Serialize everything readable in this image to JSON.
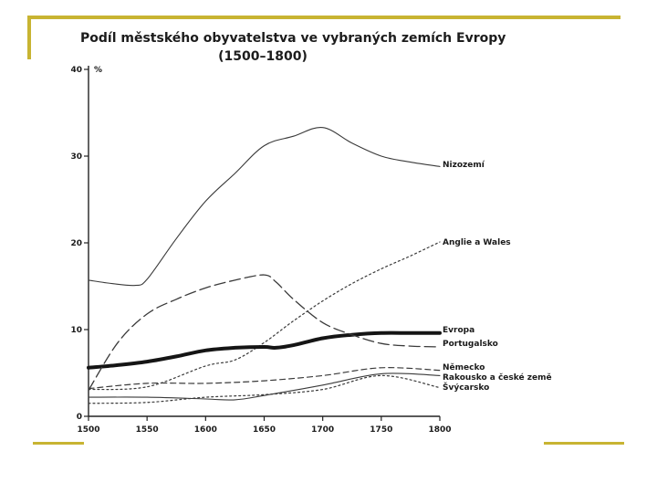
{
  "chart_data": {
    "type": "line",
    "title": "Podíl městského obyvatelstva ve vybraných zemích Evropy",
    "subtitle": "(1500–1800)",
    "ylabel": "%",
    "xlabel": "",
    "xlim": [
      1500,
      1800
    ],
    "ylim": [
      0,
      40
    ],
    "xticks": [
      1500,
      1550,
      1600,
      1650,
      1700,
      1750,
      1800
    ],
    "yticks": [
      0,
      10,
      20,
      30,
      40
    ],
    "grid": false,
    "series": [
      {
        "name": "Nizozemí",
        "style": "thin",
        "color": "#3a3a3a",
        "x": [
          1500,
          1520,
          1540,
          1550,
          1575,
          1600,
          1625,
          1650,
          1675,
          1700,
          1725,
          1750,
          1775,
          1800
        ],
        "values": [
          15.7,
          15.3,
          15.1,
          15.8,
          20.5,
          24.8,
          28.0,
          31.2,
          32.3,
          33.3,
          31.5,
          30.0,
          29.3,
          28.8
        ]
      },
      {
        "name": "Anglie a Wales",
        "style": "dotted",
        "color": "#3a3a3a",
        "x": [
          1500,
          1550,
          1600,
          1625,
          1650,
          1675,
          1700,
          1725,
          1750,
          1775,
          1800
        ],
        "values": [
          3.1,
          3.4,
          5.8,
          6.5,
          8.5,
          11.0,
          13.3,
          15.3,
          17.0,
          18.5,
          20.1
        ]
      },
      {
        "name": "Evropa",
        "style": "thick",
        "color": "#151515",
        "x": [
          1500,
          1525,
          1550,
          1575,
          1600,
          1625,
          1650,
          1660,
          1675,
          1700,
          1725,
          1750,
          1775,
          1800
        ],
        "values": [
          5.6,
          5.9,
          6.3,
          6.9,
          7.6,
          7.9,
          8.0,
          7.9,
          8.2,
          9.0,
          9.4,
          9.6,
          9.6,
          9.6
        ]
      },
      {
        "name": "Portugalsko",
        "style": "longdash",
        "color": "#3a3a3a",
        "x": [
          1500,
          1525,
          1550,
          1575,
          1600,
          1625,
          1650,
          1660,
          1675,
          1700,
          1725,
          1750,
          1775,
          1800
        ],
        "values": [
          3.0,
          8.5,
          11.8,
          13.5,
          14.8,
          15.7,
          16.3,
          15.5,
          13.5,
          10.8,
          9.4,
          8.4,
          8.1,
          8.0
        ]
      },
      {
        "name": "Německo",
        "style": "dashed",
        "color": "#3a3a3a",
        "x": [
          1500,
          1550,
          1600,
          1650,
          1700,
          1750,
          1800
        ],
        "values": [
          3.2,
          3.8,
          3.8,
          4.1,
          4.7,
          5.6,
          5.3
        ]
      },
      {
        "name": "Rakousko a české země",
        "style": "thin",
        "color": "#3a3a3a",
        "x": [
          1500,
          1550,
          1600,
          1625,
          1650,
          1700,
          1750,
          1800
        ],
        "values": [
          2.2,
          2.2,
          2.0,
          1.9,
          2.4,
          3.6,
          4.9,
          4.7
        ]
      },
      {
        "name": "Švýcarsko",
        "style": "dotted",
        "color": "#3a3a3a",
        "x": [
          1500,
          1550,
          1600,
          1650,
          1700,
          1750,
          1800
        ],
        "values": [
          1.5,
          1.6,
          2.2,
          2.5,
          3.1,
          4.7,
          3.3
        ]
      }
    ]
  }
}
